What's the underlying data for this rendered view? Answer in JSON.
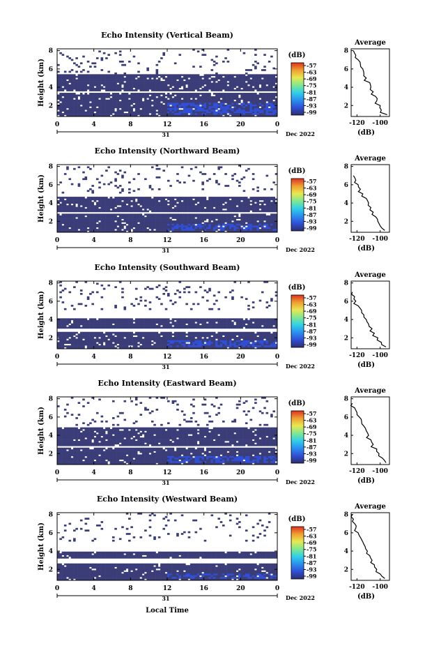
{
  "figure": {
    "x_axis_label": "Local Time",
    "date_label": "Dec 2022",
    "day_label": "31",
    "x_ticks": [
      "0",
      "4",
      "8",
      "12",
      "16",
      "20",
      "0"
    ],
    "y_axis_label": "Height (km)",
    "y_ticks": [
      "2",
      "4",
      "6",
      "8"
    ],
    "colorbar_unit": "(dB)",
    "colorbar_ticks": [
      "-57",
      "-63",
      "-69",
      "-75",
      "-81",
      "-87",
      "-93",
      "-99"
    ],
    "colors": {
      "background_echo": "#3a3d78",
      "weak_blue": "#2f4fd8",
      "colorbar_scale": [
        "#2d2e6e",
        "#2f4fd8",
        "#2a8ff0",
        "#2fd0e8",
        "#80e890",
        "#e8e850",
        "#f0a030",
        "#e03020"
      ]
    },
    "avg_title": "Average",
    "avg_xlabel": "(dB)",
    "avg_x_ticks": [
      "-120",
      "-100"
    ],
    "avg_y_ticks": [
      "2",
      "4",
      "6",
      "8"
    ]
  },
  "chart_data": [
    {
      "type": "heatmap",
      "title": "Echo Intensity (Vertical Beam)",
      "xlabel": "Local Time",
      "ylabel": "Height (km)",
      "x_range_hours": [
        0,
        24
      ],
      "y_range_km": [
        0.8,
        8.2
      ],
      "colorbar_range_db": [
        -99,
        -57
      ],
      "echo_layers": [
        {
          "level_db": -99,
          "height_km": [
            3.6,
            5.4
          ]
        },
        {
          "level_db": -99,
          "height_km": [
            0.8,
            3.4
          ]
        },
        {
          "level_db": -93,
          "height_km": [
            0.9,
            2.2
          ],
          "time_h": [
            12,
            24
          ]
        }
      ],
      "average_profile": {
        "type": "line",
        "title": "Average",
        "xlabel": "(dB)",
        "xlim": [
          -125,
          -92
        ],
        "ylim": [
          0.8,
          8.2
        ],
        "heights_km": [
          1.0,
          1.5,
          2.0,
          2.5,
          3.0,
          3.5,
          4.0,
          4.5,
          5.0,
          5.5,
          6.0,
          6.5,
          7.0,
          7.5,
          8.0
        ],
        "values_db": [
          -94,
          -99,
          -100,
          -103,
          -104,
          -106,
          -108,
          -109,
          -112,
          -114,
          -115,
          -117,
          -119,
          -121,
          -123
        ]
      }
    },
    {
      "type": "heatmap",
      "title": "Echo Intensity (Northward Beam)",
      "xlabel": "Local Time",
      "ylabel": "Height (km)",
      "x_range_hours": [
        0,
        24
      ],
      "y_range_km": [
        0.8,
        8.2
      ],
      "colorbar_range_db": [
        -99,
        -57
      ],
      "echo_layers": [
        {
          "level_db": -99,
          "height_km": [
            3.0,
            4.6
          ]
        },
        {
          "level_db": -99,
          "height_km": [
            0.8,
            2.8
          ]
        },
        {
          "level_db": -93,
          "height_km": [
            0.9,
            1.8
          ],
          "time_h": [
            12,
            24
          ]
        }
      ],
      "average_profile": {
        "type": "line",
        "title": "Average",
        "xlabel": "(dB)",
        "xlim": [
          -125,
          -92
        ],
        "ylim": [
          0.8,
          8.2
        ],
        "heights_km": [
          1.0,
          1.5,
          2.0,
          2.5,
          3.0,
          3.5,
          4.0,
          4.5,
          5.0,
          5.5,
          6.0,
          6.5,
          7.0
        ],
        "values_db": [
          -96,
          -100,
          -102,
          -104,
          -106,
          -108,
          -110,
          -112,
          -115,
          -117,
          -119,
          -121,
          -123
        ]
      }
    },
    {
      "type": "heatmap",
      "title": "Echo Intensity (Southward Beam)",
      "xlabel": "Local Time",
      "ylabel": "Height (km)",
      "x_range_hours": [
        0,
        24
      ],
      "y_range_km": [
        0.8,
        8.2
      ],
      "colorbar_range_db": [
        -99,
        -57
      ],
      "echo_layers": [
        {
          "level_db": -99,
          "height_km": [
            3.0,
            4.2
          ]
        },
        {
          "level_db": -99,
          "height_km": [
            0.8,
            2.6
          ]
        },
        {
          "level_db": -93,
          "height_km": [
            0.9,
            1.8
          ],
          "time_h": [
            12,
            24
          ]
        }
      ],
      "average_profile": {
        "type": "line",
        "title": "Average",
        "xlabel": "(dB)",
        "xlim": [
          -125,
          -92
        ],
        "ylim": [
          0.8,
          8.2
        ],
        "heights_km": [
          1.0,
          1.5,
          2.0,
          2.5,
          3.0,
          3.5,
          4.0,
          4.5,
          5.0,
          5.5,
          6.0,
          6.5,
          7.0
        ],
        "values_db": [
          -95,
          -99,
          -102,
          -105,
          -107,
          -110,
          -112,
          -114,
          -116,
          -119,
          -121,
          -122,
          -124
        ]
      }
    },
    {
      "type": "heatmap",
      "title": "Echo Intensity (Eastward Beam)",
      "xlabel": "Local Time",
      "ylabel": "Height (km)",
      "x_range_hours": [
        0,
        24
      ],
      "y_range_km": [
        0.8,
        8.2
      ],
      "colorbar_range_db": [
        -99,
        -57
      ],
      "echo_layers": [
        {
          "level_db": -99,
          "height_km": [
            2.8,
            4.8
          ]
        },
        {
          "level_db": -99,
          "height_km": [
            0.8,
            2.6
          ]
        },
        {
          "level_db": -93,
          "height_km": [
            0.9,
            1.8
          ],
          "time_h": [
            12,
            24
          ]
        }
      ],
      "average_profile": {
        "type": "line",
        "title": "Average",
        "xlabel": "(dB)",
        "xlim": [
          -125,
          -92
        ],
        "ylim": [
          0.8,
          8.2
        ],
        "heights_km": [
          1.0,
          1.5,
          2.0,
          2.5,
          3.0,
          3.5,
          4.0,
          4.5,
          5.0,
          5.5,
          6.0,
          6.5,
          7.0,
          7.5
        ],
        "values_db": [
          -95,
          -98,
          -101,
          -103,
          -106,
          -108,
          -110,
          -112,
          -114,
          -116,
          -118,
          -120,
          -122,
          -124
        ]
      }
    },
    {
      "type": "heatmap",
      "title": "Echo Intensity (Westward Beam)",
      "xlabel": "Local Time",
      "ylabel": "Height (km)",
      "x_range_hours": [
        0,
        24
      ],
      "y_range_km": [
        0.8,
        8.2
      ],
      "colorbar_range_db": [
        -99,
        -57
      ],
      "echo_layers": [
        {
          "level_db": -99,
          "height_km": [
            3.2,
            4.0
          ]
        },
        {
          "level_db": -99,
          "height_km": [
            0.8,
            2.6
          ]
        },
        {
          "level_db": -93,
          "height_km": [
            0.9,
            1.6
          ],
          "time_h": [
            12,
            24
          ]
        }
      ],
      "average_profile": {
        "type": "line",
        "title": "Average",
        "xlabel": "(dB)",
        "xlim": [
          -125,
          -92
        ],
        "ylim": [
          0.8,
          8.2
        ],
        "heights_km": [
          1.0,
          1.5,
          2.0,
          2.5,
          3.0,
          3.5,
          4.0,
          4.5,
          5.0,
          5.5,
          6.0,
          6.5,
          7.0,
          7.5,
          8.0
        ],
        "values_db": [
          -96,
          -100,
          -103,
          -105,
          -107,
          -109,
          -111,
          -113,
          -115,
          -117,
          -119,
          -121,
          -122,
          -123,
          -124
        ]
      }
    }
  ]
}
